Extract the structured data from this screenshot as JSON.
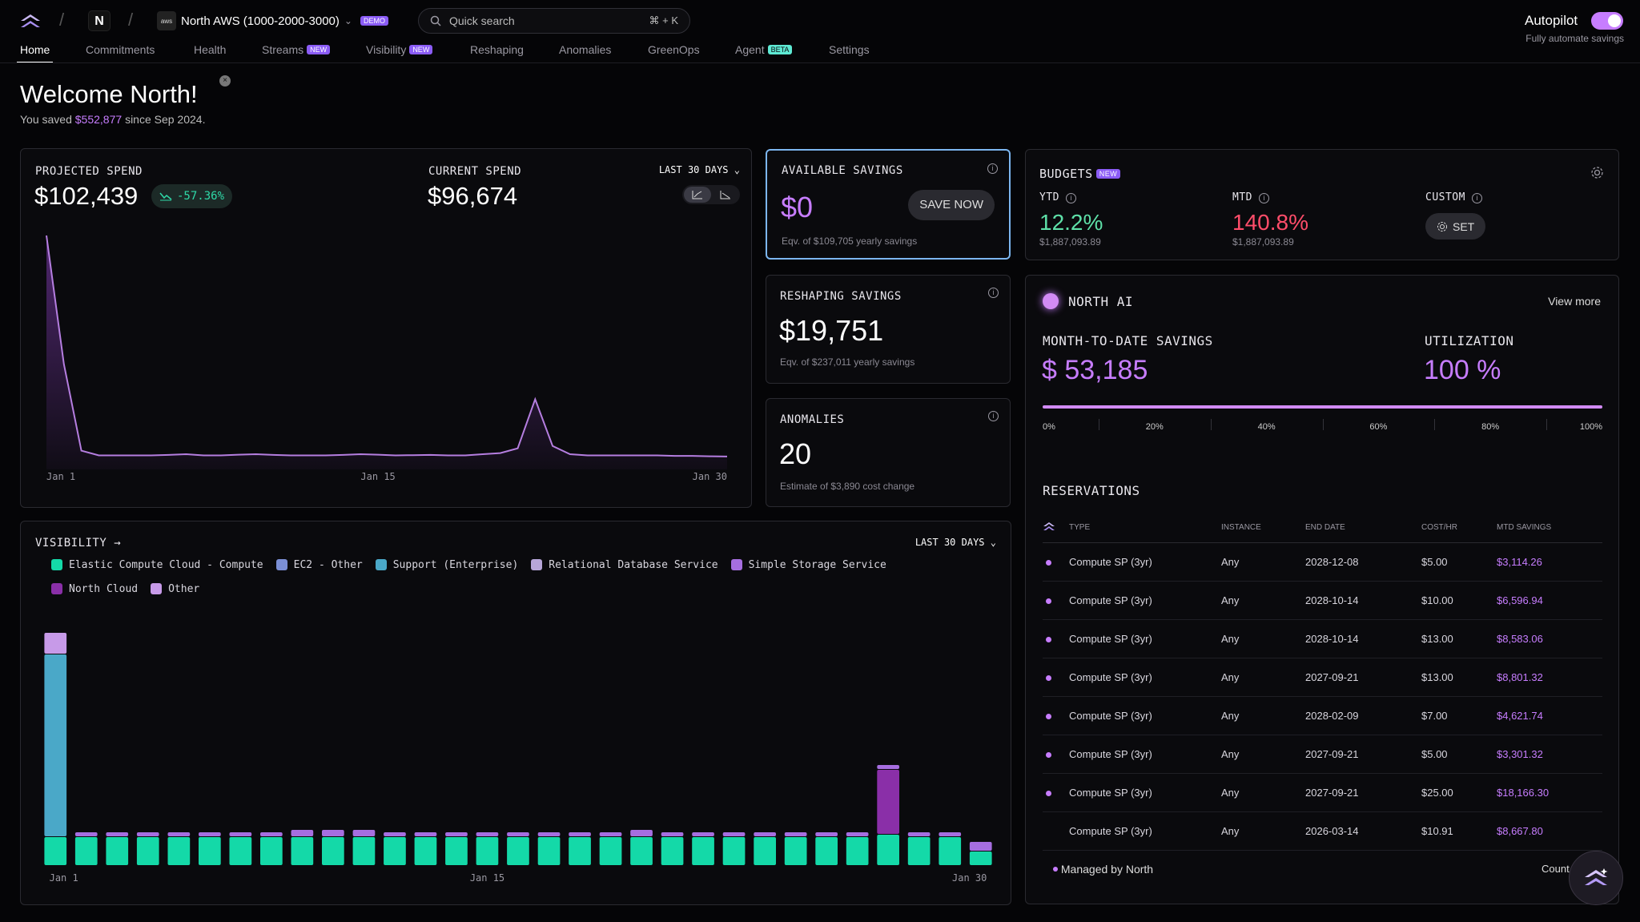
{
  "header": {
    "org_initial": "N",
    "account": "North AWS (1000-2000-3000)",
    "account_badge": "DEMO",
    "aws_label": "aws",
    "search_placeholder": "Quick search",
    "search_shortcut": "⌘ + K",
    "autopilot_label": "Autopilot",
    "autopilot_sub": "Fully automate savings"
  },
  "tabs": [
    {
      "label": "Home"
    },
    {
      "label": "Commitments"
    },
    {
      "label": "Health"
    },
    {
      "label": "Streams",
      "badge": "NEW"
    },
    {
      "label": "Visibility",
      "badge": "NEW"
    },
    {
      "label": "Reshaping"
    },
    {
      "label": "Anomalies"
    },
    {
      "label": "GreenOps"
    },
    {
      "label": "Agent",
      "badge": "BETA"
    },
    {
      "label": "Settings"
    }
  ],
  "welcome": {
    "title": "Welcome North!",
    "saved_prefix": "You saved",
    "saved_amount": "$552,877",
    "saved_suffix": "since Sep 2024."
  },
  "spend": {
    "projected_label": "PROJECTED SPEND",
    "projected_value": "$102,439",
    "change": "-57.36%",
    "current_label": "CURRENT SPEND",
    "current_value": "$96,674",
    "range": "LAST 30 DAYS"
  },
  "spend_chart": {
    "type": "area",
    "x_ticks": [
      "Jan 1",
      "Jan 15",
      "Jan 30"
    ],
    "values": [
      100,
      45,
      8,
      6,
      6,
      6,
      6,
      6.2,
      6.5,
      6,
      6,
      6.3,
      6.5,
      6.2,
      6,
      6,
      6,
      6.2,
      6.5,
      6.3,
      6,
      6.1,
      6.2,
      6,
      6,
      6.5,
      7,
      9,
      30,
      10,
      6.5,
      6,
      6,
      6,
      6,
      6,
      5.8,
      5.8,
      5.6,
      5.5
    ],
    "ylim": [
      0,
      100
    ]
  },
  "available_savings": {
    "label": "AVAILABLE SAVINGS",
    "value": "$0",
    "button": "SAVE NOW",
    "sub": "Eqv. of $109,705 yearly savings"
  },
  "reshaping": {
    "label": "RESHAPING SAVINGS",
    "value": "$19,751",
    "sub": "Eqv. of $237,011 yearly savings"
  },
  "anomalies": {
    "label": "ANOMALIES",
    "value": "20",
    "sub": "Estimate of $3,890 cost change"
  },
  "budgets": {
    "label": "BUDGETS",
    "badge": "NEW",
    "ytd_label": "YTD",
    "ytd_value": "12.2%",
    "ytd_sub": "$1,887,093.89",
    "mtd_label": "MTD",
    "mtd_value": "140.8%",
    "mtd_sub": "$1,887,093.89",
    "custom_label": "CUSTOM",
    "set_button": "SET"
  },
  "north_ai": {
    "label": "NORTH AI",
    "view_more": "View more",
    "mtd_label": "MONTH-TO-DATE SAVINGS",
    "mtd_value": "$ 53,185",
    "util_label": "UTILIZATION",
    "util_value": "100 %",
    "util_fraction": 1.0,
    "ticks": [
      "0%",
      "20%",
      "40%",
      "60%",
      "80%",
      "100%"
    ]
  },
  "reservations": {
    "label": "RESERVATIONS",
    "columns": [
      "TYPE",
      "INSTANCE",
      "END DATE",
      "COST/HR",
      "MTD SAVINGS"
    ],
    "rows": [
      {
        "managed": true,
        "type": "Compute SP (3yr)",
        "instance": "Any",
        "end": "2028-12-08",
        "cost": "$5.00",
        "savings": "$3,114.26"
      },
      {
        "managed": true,
        "type": "Compute SP (3yr)",
        "instance": "Any",
        "end": "2028-10-14",
        "cost": "$10.00",
        "savings": "$6,596.94"
      },
      {
        "managed": true,
        "type": "Compute SP (3yr)",
        "instance": "Any",
        "end": "2028-10-14",
        "cost": "$13.00",
        "savings": "$8,583.06"
      },
      {
        "managed": true,
        "type": "Compute SP (3yr)",
        "instance": "Any",
        "end": "2027-09-21",
        "cost": "$13.00",
        "savings": "$8,801.32"
      },
      {
        "managed": true,
        "type": "Compute SP (3yr)",
        "instance": "Any",
        "end": "2028-02-09",
        "cost": "$7.00",
        "savings": "$4,621.74"
      },
      {
        "managed": true,
        "type": "Compute SP (3yr)",
        "instance": "Any",
        "end": "2027-09-21",
        "cost": "$5.00",
        "savings": "$3,301.32"
      },
      {
        "managed": true,
        "type": "Compute SP (3yr)",
        "instance": "Any",
        "end": "2027-09-21",
        "cost": "$25.00",
        "savings": "$18,166.30"
      },
      {
        "managed": false,
        "type": "Compute SP (3yr)",
        "instance": "Any",
        "end": "2026-03-14",
        "cost": "$10.91",
        "savings": "$8,667.80"
      }
    ],
    "footer_managed": "Managed by North",
    "footer_right": "Count"
  },
  "visibility": {
    "label": "VISIBILITY →",
    "range": "LAST 30 DAYS",
    "legend": [
      {
        "name": "Elastic Compute Cloud - Compute",
        "color": "#14d9a8"
      },
      {
        "name": "EC2 - Other",
        "color": "#7b8fd6"
      },
      {
        "name": "Support (Enterprise)",
        "color": "#4aa8c8"
      },
      {
        "name": "Relational Database Service",
        "color": "#b7a6d9"
      },
      {
        "name": "Simple Storage Service",
        "color": "#a66ee0"
      },
      {
        "name": "North Cloud",
        "color": "#8a2fa8"
      },
      {
        "name": "Other",
        "color": "#c79ae8"
      }
    ]
  },
  "chart_data": {
    "type": "bar",
    "x_ticks": [
      "Jan 1",
      "Jan 15",
      "Jan 30"
    ],
    "ylim": [
      0,
      100
    ],
    "series": [
      {
        "name": "Elastic Compute Cloud - Compute",
        "values": [
          12,
          12,
          12,
          12,
          12,
          12,
          12,
          12,
          12,
          12,
          12,
          12,
          12,
          12,
          12,
          12,
          12,
          12,
          12,
          12,
          12,
          12,
          12,
          12,
          12,
          12,
          12,
          13,
          12,
          12,
          6
        ]
      },
      {
        "name": "Support (Enterprise)",
        "values": [
          76,
          0,
          0,
          0,
          0,
          0,
          0,
          0,
          0,
          0,
          0,
          0,
          0,
          0,
          0,
          0,
          0,
          0,
          0,
          0,
          0,
          0,
          0,
          0,
          0,
          0,
          0,
          0,
          0,
          0,
          0
        ]
      },
      {
        "name": "North Cloud",
        "values": [
          0,
          0,
          0,
          0,
          0,
          0,
          0,
          0,
          0,
          0,
          0,
          0,
          0,
          0,
          0,
          0,
          0,
          0,
          0,
          0,
          0,
          0,
          0,
          0,
          0,
          0,
          0,
          27,
          0,
          0,
          0
        ]
      },
      {
        "name": "Simple Storage Service",
        "values": [
          0,
          2,
          2,
          2,
          2,
          2,
          2,
          2,
          3,
          3,
          3,
          2,
          2,
          2,
          2,
          2,
          2,
          2,
          2,
          3,
          2,
          2,
          2,
          2,
          2,
          2,
          2,
          2,
          2,
          2,
          4
        ]
      },
      {
        "name": "Other",
        "values": [
          9,
          0,
          0,
          0,
          0,
          0,
          0,
          0,
          0,
          0,
          0,
          0,
          0,
          0,
          0,
          0,
          0,
          0,
          0,
          0,
          0,
          0,
          0,
          0,
          0,
          0,
          0,
          0,
          0,
          0,
          0
        ]
      }
    ]
  }
}
